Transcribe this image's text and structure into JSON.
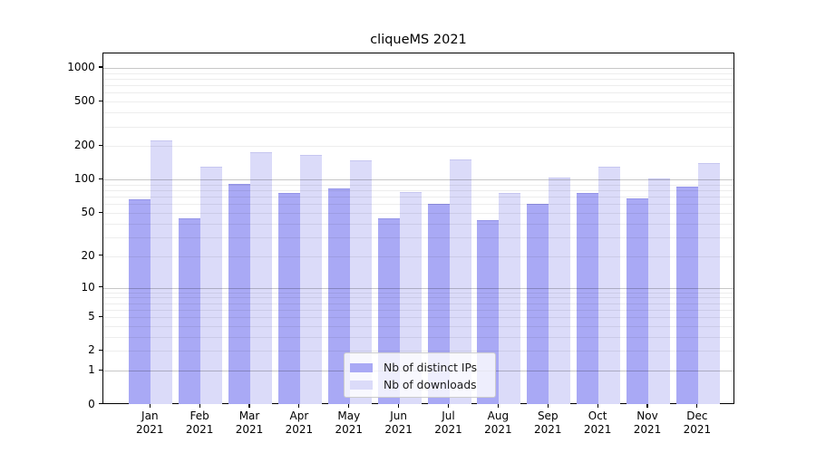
{
  "title": "cliqueMS 2021",
  "chart_data": {
    "type": "bar",
    "title": "cliqueMS 2021",
    "xlabel": "",
    "ylabel": "",
    "y_scale": "log1p",
    "y_ticks": [
      0,
      1,
      2,
      5,
      10,
      20,
      50,
      100,
      200,
      500,
      1000
    ],
    "ylim": [
      0,
      1350
    ],
    "grid": true,
    "legend_position": "lower center",
    "categories": [
      "Jan 2021",
      "Feb 2021",
      "Mar 2021",
      "Apr 2021",
      "May 2021",
      "Jun 2021",
      "Jul 2021",
      "Aug 2021",
      "Sep 2021",
      "Oct 2021",
      "Nov 2021",
      "Dec 2021"
    ],
    "series": [
      {
        "name": "Nb of distinct IPs",
        "color": "#a9a9f5",
        "edge_color": "#9494e8",
        "values": [
          67,
          45,
          92,
          76,
          83,
          45,
          61,
          43,
          60,
          76,
          68,
          87
        ]
      },
      {
        "name": "Nb of downloads",
        "color": "#dbdbf9",
        "edge_color": "#c6c6f0",
        "values": [
          227,
          131,
          177,
          168,
          150,
          78,
          153,
          76,
          105,
          130,
          102,
          140
        ]
      }
    ]
  },
  "colors": {
    "background": "#ffffff",
    "spine": "#000000",
    "text": "#000000",
    "grid_major": "rgba(0,0,0,0.22)",
    "grid_minor": "rgba(0,0,0,0.07)",
    "legend_border": "#cccccc"
  }
}
